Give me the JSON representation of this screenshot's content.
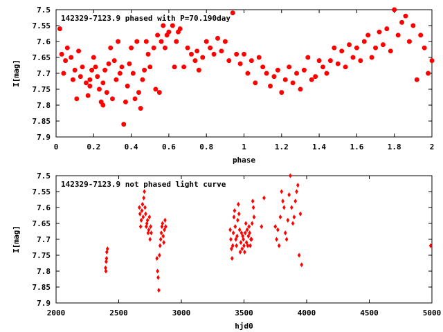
{
  "chart_data": [
    {
      "type": "scatter",
      "title": "142329-7123.9 phased with P=70.190day",
      "xlabel": "phase",
      "ylabel": "I[mag]",
      "xlim": [
        0,
        2
      ],
      "ylim": [
        7.9,
        7.5
      ],
      "y_inverted": true,
      "x_ticks": [
        "0",
        "0.2",
        "0.4",
        "0.6",
        "0.8",
        "1",
        "1.2",
        "1.4",
        "1.6",
        "1.8",
        "2"
      ],
      "y_ticks": [
        "7.5",
        "7.55",
        "7.6",
        "7.65",
        "7.7",
        "7.75",
        "7.8",
        "7.85",
        "7.9"
      ],
      "marker_color": "#ff0000",
      "grid": false,
      "series": [
        {
          "x": [
            0.02,
            0.03,
            0.04,
            0.05,
            0.06,
            0.08,
            0.09,
            0.1,
            0.11,
            0.12,
            0.13,
            0.14,
            0.16,
            0.17,
            0.18,
            0.18,
            0.19,
            0.2,
            0.21,
            0.22,
            0.23,
            0.24,
            0.25,
            0.25,
            0.26,
            0.27,
            0.28,
            0.29,
            0.3,
            0.31,
            0.32,
            0.33,
            0.34,
            0.35,
            0.36,
            0.37,
            0.38,
            0.39,
            0.4,
            0.41,
            0.42,
            0.43,
            0.44,
            0.45,
            0.46,
            0.47,
            0.48,
            0.49,
            0.5,
            0.52,
            0.53,
            0.54,
            0.55,
            0.56,
            0.57,
            0.58,
            0.59,
            0.6,
            0.62,
            0.63,
            0.64,
            0.65,
            0.66,
            0.68,
            0.7,
            0.72,
            0.74,
            0.75,
            0.76,
            0.78,
            0.8,
            0.82,
            0.84,
            0.86,
            0.88,
            0.9,
            0.92,
            0.94,
            0.96,
            0.98,
            1.0,
            1.02,
            1.04,
            1.06,
            1.08,
            1.1,
            1.12,
            1.14,
            1.16,
            1.18,
            1.2,
            1.22,
            1.24,
            1.26,
            1.28,
            1.3,
            1.32,
            1.34,
            1.36,
            1.38,
            1.4,
            1.42,
            1.44,
            1.46,
            1.48,
            1.5,
            1.52,
            1.54,
            1.56,
            1.58,
            1.6,
            1.62,
            1.64,
            1.66,
            1.68,
            1.7,
            1.72,
            1.74,
            1.76,
            1.78,
            1.8,
            1.82,
            1.84,
            1.86,
            1.88,
            1.9,
            1.92,
            1.94,
            1.96,
            1.98,
            2.0
          ],
          "y": [
            7.56,
            7.64,
            7.7,
            7.66,
            7.62,
            7.65,
            7.72,
            7.69,
            7.78,
            7.63,
            7.71,
            7.68,
            7.73,
            7.77,
            7.72,
            7.74,
            7.69,
            7.65,
            7.68,
            7.71,
            7.75,
            7.79,
            7.8,
            7.73,
            7.69,
            7.76,
            7.67,
            7.62,
            7.78,
            7.66,
            7.72,
            7.6,
            7.7,
            7.68,
            7.86,
            7.79,
            7.74,
            7.67,
            7.62,
            7.7,
            7.78,
            7.6,
            7.76,
            7.81,
            7.72,
            7.69,
            7.6,
            7.64,
            7.68,
            7.62,
            7.75,
            7.58,
            7.76,
            7.6,
            7.55,
            7.62,
            7.58,
            7.57,
            7.55,
            7.68,
            7.6,
            7.57,
            7.56,
            7.68,
            7.62,
            7.64,
            7.66,
            7.63,
            7.69,
            7.65,
            7.6,
            7.62,
            7.64,
            7.59,
            7.63,
            7.6,
            7.66,
            7.51,
            7.64,
            7.67,
            7.64,
            7.7,
            7.66,
            7.73,
            7.65,
            7.68,
            7.7,
            7.74,
            7.71,
            7.69,
            7.76,
            7.72,
            7.68,
            7.73,
            7.7,
            7.75,
            7.69,
            7.65,
            7.72,
            7.71,
            7.66,
            7.68,
            7.7,
            7.66,
            7.62,
            7.67,
            7.63,
            7.68,
            7.61,
            7.65,
            7.62,
            7.66,
            7.6,
            7.58,
            7.65,
            7.62,
            7.57,
            7.61,
            7.56,
            7.63,
            7.5,
            7.58,
            7.54,
            7.52,
            7.6,
            7.55,
            7.72,
            7.58,
            7.62,
            7.7,
            7.66
          ]
        }
      ]
    },
    {
      "type": "scatter",
      "title": "142329-7123.9 not phased light curve",
      "xlabel": "hjd0",
      "ylabel": "I[mag]",
      "xlim": [
        2000,
        5000
      ],
      "ylim": [
        7.9,
        7.5
      ],
      "y_inverted": true,
      "x_ticks": [
        "2000",
        "2500",
        "3000",
        "3500",
        "4000",
        "4500",
        "5000"
      ],
      "y_ticks": [
        "7.5",
        "7.55",
        "7.6",
        "7.65",
        "7.7",
        "7.75",
        "7.8",
        "7.85",
        "7.9"
      ],
      "marker_color": "#ff0000",
      "grid": false,
      "series": [
        {
          "x": [
            2395,
            2400,
            2405,
            2410,
            2398,
            2403,
            2665,
            2670,
            2675,
            2680,
            2685,
            2690,
            2695,
            2700,
            2705,
            2710,
            2715,
            2720,
            2725,
            2730,
            2735,
            2740,
            2745,
            2750,
            2755,
            2760,
            2805,
            2810,
            2815,
            2820,
            2825,
            2830,
            2835,
            2840,
            2845,
            2850,
            2855,
            2860,
            2865,
            2870,
            2875,
            3390,
            3395,
            3400,
            3405,
            3410,
            3415,
            3420,
            3425,
            3430,
            3435,
            3440,
            3445,
            3450,
            3455,
            3460,
            3465,
            3470,
            3475,
            3480,
            3485,
            3490,
            3495,
            3500,
            3505,
            3510,
            3515,
            3520,
            3525,
            3530,
            3535,
            3540,
            3545,
            3550,
            3555,
            3560,
            3565,
            3570,
            3575,
            3580,
            3640,
            3660,
            3750,
            3760,
            3770,
            3780,
            3790,
            3800,
            3810,
            3820,
            3830,
            3840,
            3850,
            3860,
            3870,
            3880,
            3890,
            3900,
            3910,
            3920,
            3930,
            3940,
            3950,
            3960,
            4990
          ],
          "y": [
            7.79,
            7.77,
            7.74,
            7.73,
            7.8,
            7.76,
            7.6,
            7.62,
            7.66,
            7.64,
            7.61,
            7.59,
            7.63,
            7.57,
            7.55,
            7.6,
            7.62,
            7.66,
            7.65,
            7.64,
            7.68,
            7.67,
            7.63,
            7.7,
            7.66,
            7.68,
            7.76,
            7.8,
            7.82,
            7.86,
            7.75,
            7.72,
            7.7,
            7.68,
            7.66,
            7.65,
            7.69,
            7.71,
            7.67,
            7.64,
            7.66,
            7.67,
            7.7,
            7.73,
            7.76,
            7.72,
            7.68,
            7.63,
            7.61,
            7.66,
            7.7,
            7.72,
            7.69,
            7.64,
            7.59,
            7.62,
            7.67,
            7.74,
            7.71,
            7.68,
            7.73,
            7.69,
            7.7,
            7.72,
            7.74,
            7.68,
            7.65,
            7.71,
            7.67,
            7.72,
            7.69,
            7.66,
            7.68,
            7.72,
            7.7,
            7.7,
            7.65,
            7.58,
            7.6,
            7.63,
            7.66,
            7.57,
            7.66,
            7.7,
            7.67,
            7.72,
            7.63,
            7.55,
            7.58,
            7.6,
            7.68,
            7.7,
            7.64,
            7.56,
            7.5,
            7.6,
            7.65,
            7.63,
            7.58,
            7.55,
            7.53,
            7.75,
            7.62,
            7.78,
            7.72
          ]
        }
      ]
    }
  ]
}
